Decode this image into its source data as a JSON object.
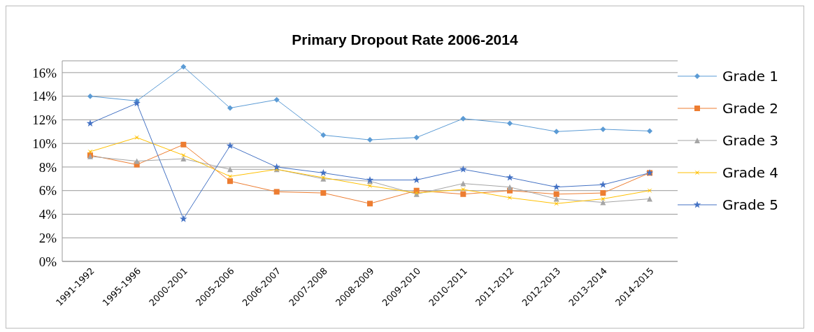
{
  "chart_data": {
    "type": "line",
    "title": "Primary Dropout Rate 2006-2014",
    "categories": [
      "1991-1992",
      "1995-1996",
      "2000-2001",
      "2005-2006",
      "2006-2007",
      "2007-2008",
      "2008-2009",
      "2009-2010",
      "2010-2011",
      "2011-2012",
      "2012-2013",
      "2013-2014",
      "2014-2015"
    ],
    "series": [
      {
        "name": "Grade 1",
        "color": "#5b9bd5",
        "marker": "diamond",
        "values": [
          14.0,
          13.6,
          16.5,
          13.0,
          13.7,
          10.7,
          10.3,
          10.5,
          12.1,
          11.7,
          11.0,
          11.2,
          11.05
        ]
      },
      {
        "name": "Grade 2",
        "color": "#ed7d31",
        "marker": "square",
        "values": [
          9.0,
          8.2,
          9.9,
          6.8,
          5.9,
          5.8,
          4.9,
          6.0,
          5.7,
          6.0,
          5.7,
          5.8,
          7.5
        ]
      },
      {
        "name": "Grade 3",
        "color": "#a5a5a5",
        "marker": "triangle",
        "values": [
          8.9,
          8.5,
          8.7,
          7.8,
          7.8,
          7.0,
          6.8,
          5.7,
          6.6,
          6.3,
          5.3,
          5.0,
          5.3
        ]
      },
      {
        "name": "Grade 4",
        "color": "#ffc000",
        "marker": "cross",
        "values": [
          9.3,
          10.5,
          9.0,
          7.2,
          7.8,
          7.1,
          6.4,
          5.8,
          6.1,
          5.4,
          4.9,
          5.3,
          6.0
        ]
      },
      {
        "name": "Grade 5",
        "color": "#4472c4",
        "marker": "star",
        "values": [
          11.7,
          13.4,
          3.6,
          9.8,
          8.0,
          7.5,
          6.9,
          6.9,
          7.8,
          7.1,
          6.3,
          6.5,
          7.5
        ]
      }
    ],
    "ylim": [
      0,
      17
    ],
    "yticks": [
      {
        "value": 0,
        "label": "0%"
      },
      {
        "value": 2,
        "label": "2%"
      },
      {
        "value": 4,
        "label": "4%"
      },
      {
        "value": 6,
        "label": "6%"
      },
      {
        "value": 8,
        "label": "8%"
      },
      {
        "value": 10,
        "label": "10%"
      },
      {
        "value": 12,
        "label": "12%"
      },
      {
        "value": 14,
        "label": "14%"
      },
      {
        "value": 16,
        "label": "16%"
      }
    ],
    "grid": "y",
    "legend": "right"
  }
}
